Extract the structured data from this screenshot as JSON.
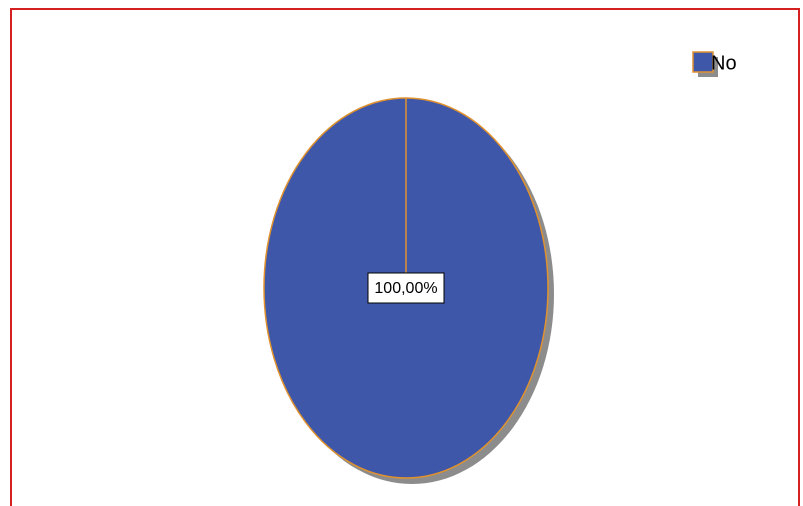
{
  "chart_data": {
    "type": "pie",
    "categories": [
      "No"
    ],
    "values": [
      100
    ],
    "value_labels": [
      "100,00%"
    ],
    "colors": [
      "#3f57a9"
    ],
    "legend": "top-right"
  }
}
